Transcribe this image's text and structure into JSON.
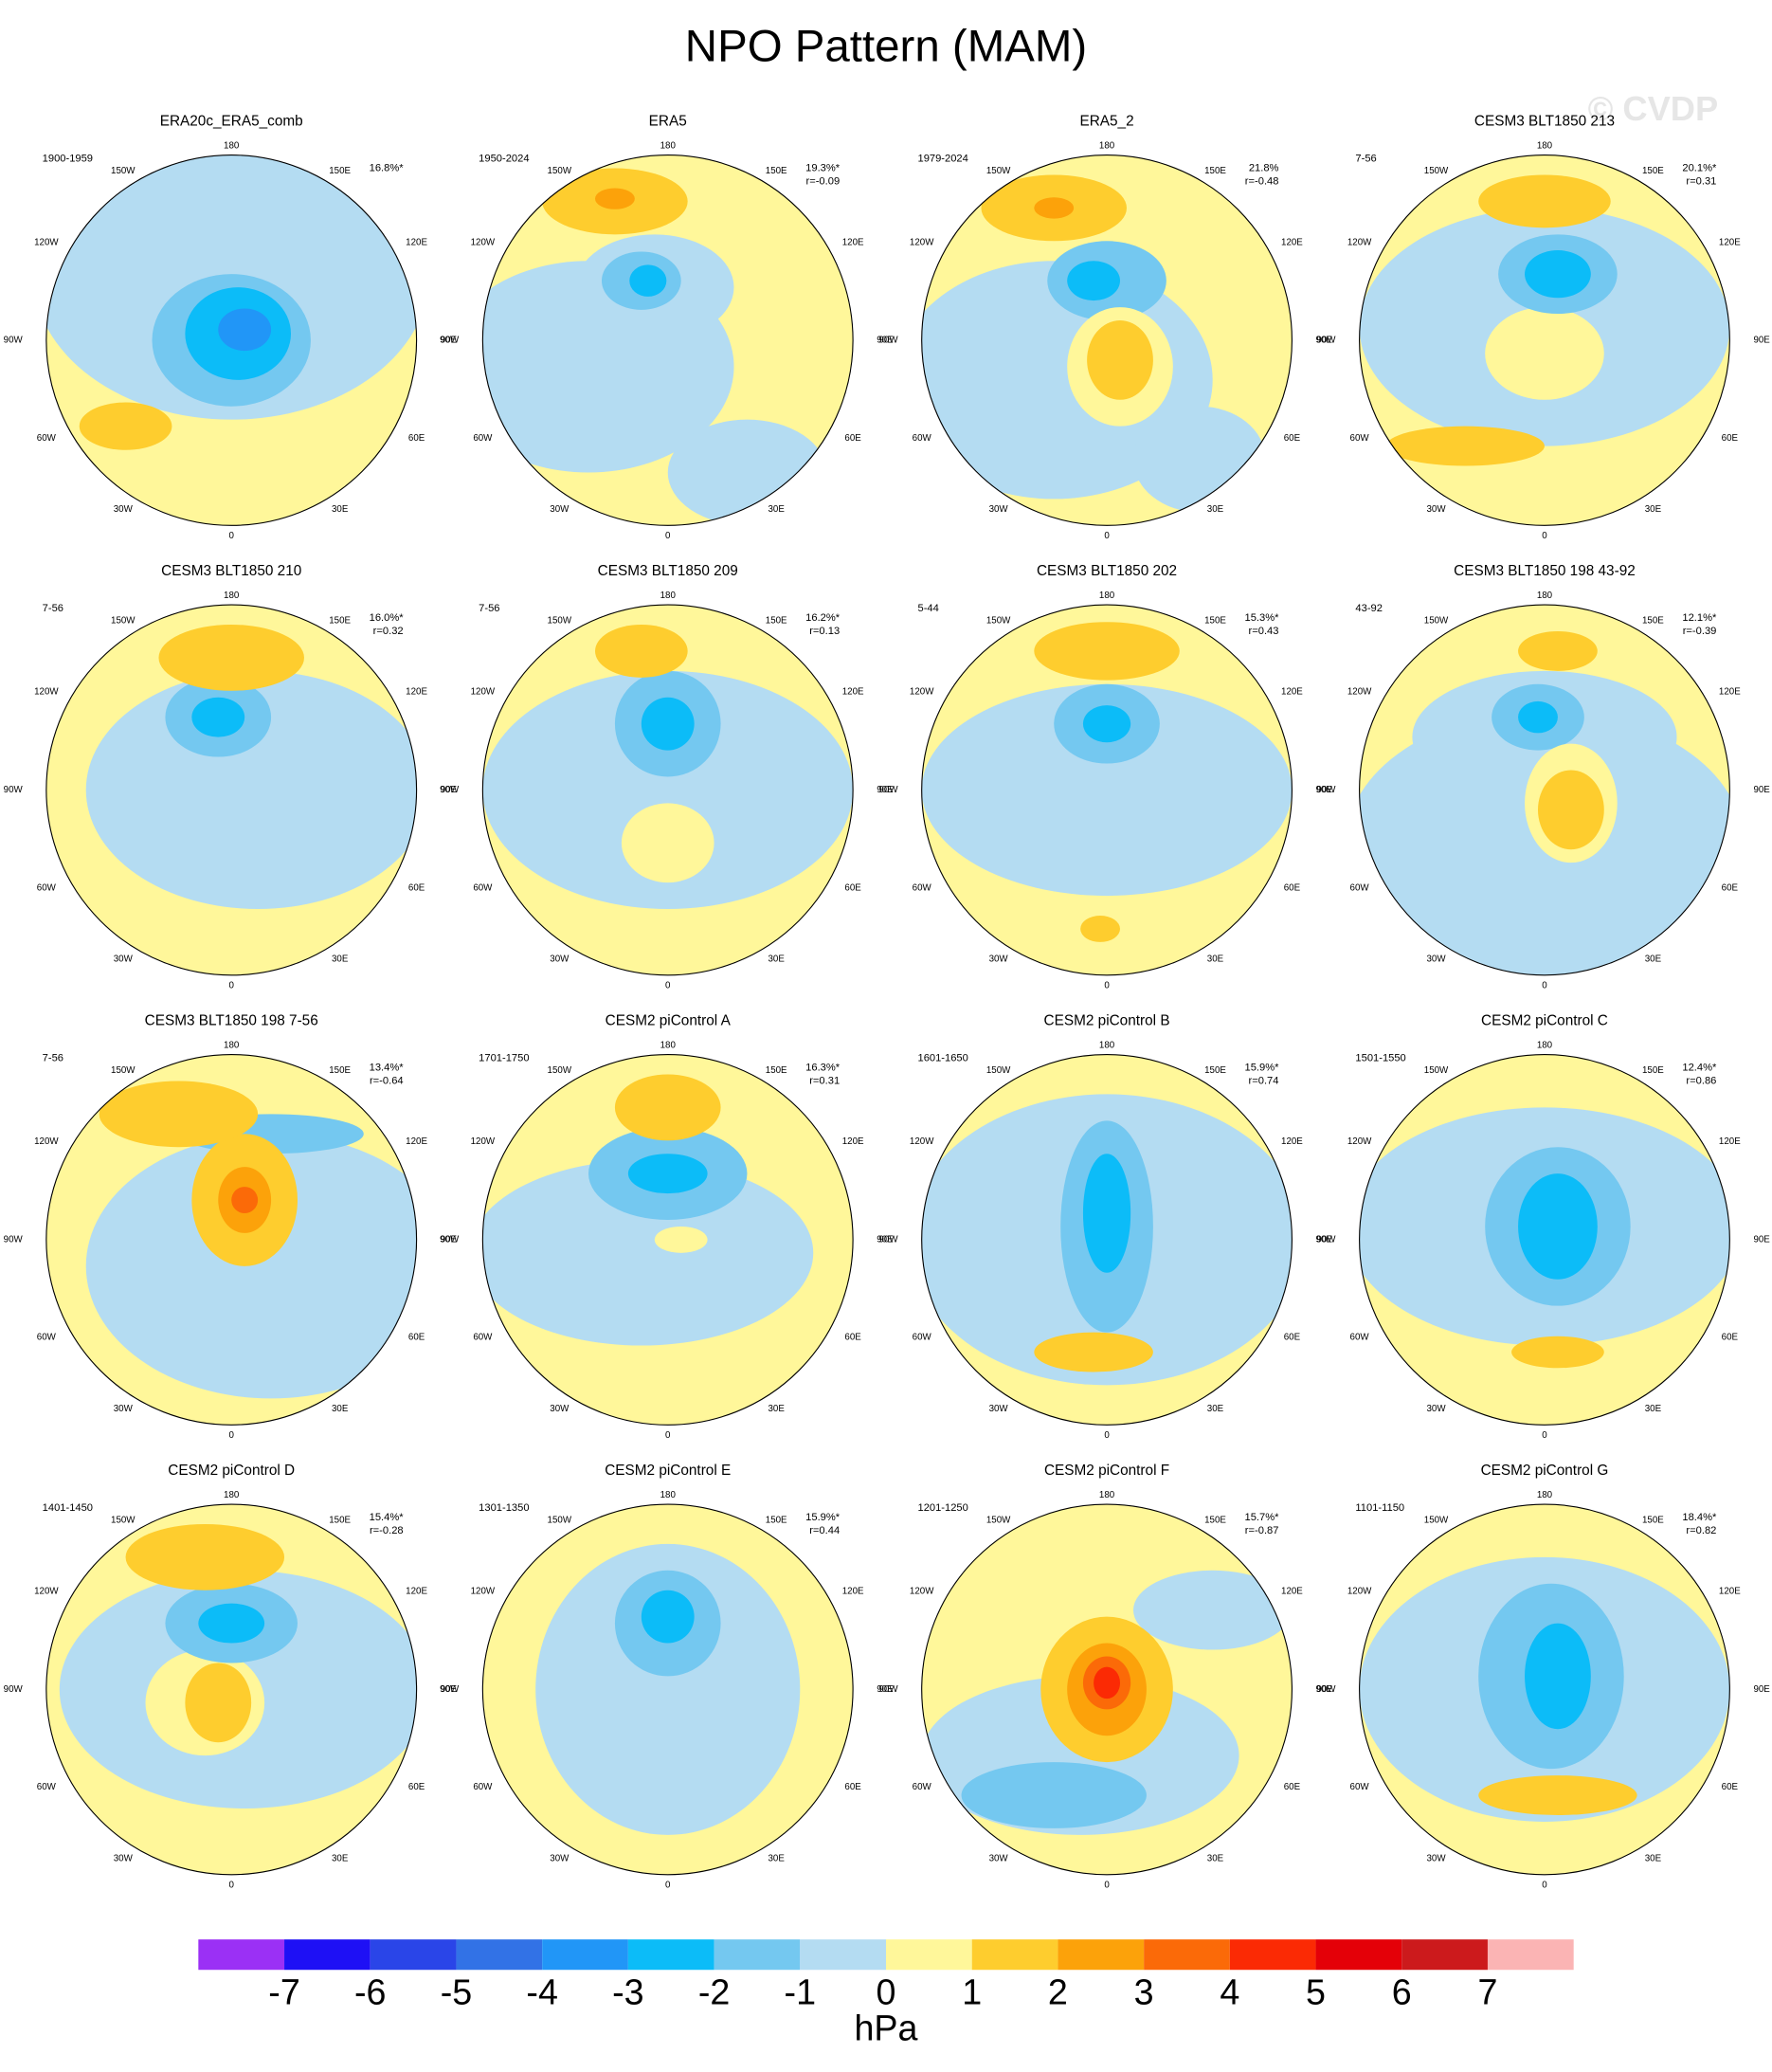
{
  "title": "NPO Pattern (MAM)",
  "watermark": "© CVDP",
  "longitude_labels": [
    "180",
    "150W",
    "150E",
    "120W",
    "120E",
    "90W",
    "90E",
    "60W",
    "60E",
    "30W",
    "30E",
    "0"
  ],
  "panels": [
    {
      "title": "ERA20c_ERA5_comb",
      "period": "1900-1959",
      "percent": "16.8%*"
    },
    {
      "title": "ERA5",
      "period": "1950-2024",
      "percent": "19.3%*",
      "r": "r=-0.09"
    },
    {
      "title": "ERA5_2",
      "period": "1979-2024",
      "percent": "21.8%",
      "r": "r=-0.48"
    },
    {
      "title": "CESM3 BLT1850 213",
      "period": "7-56",
      "percent": "20.1%*",
      "r": "r=0.31"
    },
    {
      "title": "CESM3 BLT1850 210",
      "period": "7-56",
      "percent": "16.0%*",
      "r": "r=0.32"
    },
    {
      "title": "CESM3 BLT1850 209",
      "period": "7-56",
      "percent": "16.2%*",
      "r": "r=0.13"
    },
    {
      "title": "CESM3 BLT1850 202",
      "period": "5-44",
      "percent": "15.3%*",
      "r": "r=0.43"
    },
    {
      "title": "CESM3 BLT1850 198 43-92",
      "period": "43-92",
      "percent": "12.1%*",
      "r": "r=-0.39"
    },
    {
      "title": "CESM3 BLT1850 198 7-56",
      "period": "7-56",
      "percent": "13.4%*",
      "r": "r=-0.64"
    },
    {
      "title": "CESM2 piControl A",
      "period": "1701-1750",
      "percent": "16.3%*",
      "r": "r=0.31"
    },
    {
      "title": "CESM2 piControl B",
      "period": "1601-1650",
      "percent": "15.9%*",
      "r": "r=0.74"
    },
    {
      "title": "CESM2 piControl C",
      "period": "1501-1550",
      "percent": "12.4%*",
      "r": "r=0.86"
    },
    {
      "title": "CESM2 piControl D",
      "period": "1401-1450",
      "percent": "15.4%*",
      "r": "r=-0.28"
    },
    {
      "title": "CESM2 piControl E",
      "period": "1301-1350",
      "percent": "15.9%*",
      "r": "r=0.44"
    },
    {
      "title": "CESM2 piControl F",
      "period": "1201-1250",
      "percent": "15.7%*",
      "r": "r=-0.87"
    },
    {
      "title": "CESM2 piControl G",
      "period": "1101-1150",
      "percent": "18.4%*",
      "r": "r=0.82"
    }
  ],
  "colorbar": {
    "colors": [
      "#9b30f5",
      "#1e10f5",
      "#2a45e8",
      "#3272e6",
      "#2196f7",
      "#0cbcf8",
      "#74c8f0",
      "#b4dcf2",
      "#fff79a",
      "#fecd2e",
      "#fca20a",
      "#fb6a08",
      "#fb2a04",
      "#e40008",
      "#cc1a1c",
      "#fbb4b4"
    ],
    "labels": [
      -7,
      -6,
      -5,
      -4,
      -3,
      -2,
      -1,
      0,
      1,
      2,
      3,
      4,
      5,
      6,
      7
    ],
    "unit": "hPa"
  }
}
